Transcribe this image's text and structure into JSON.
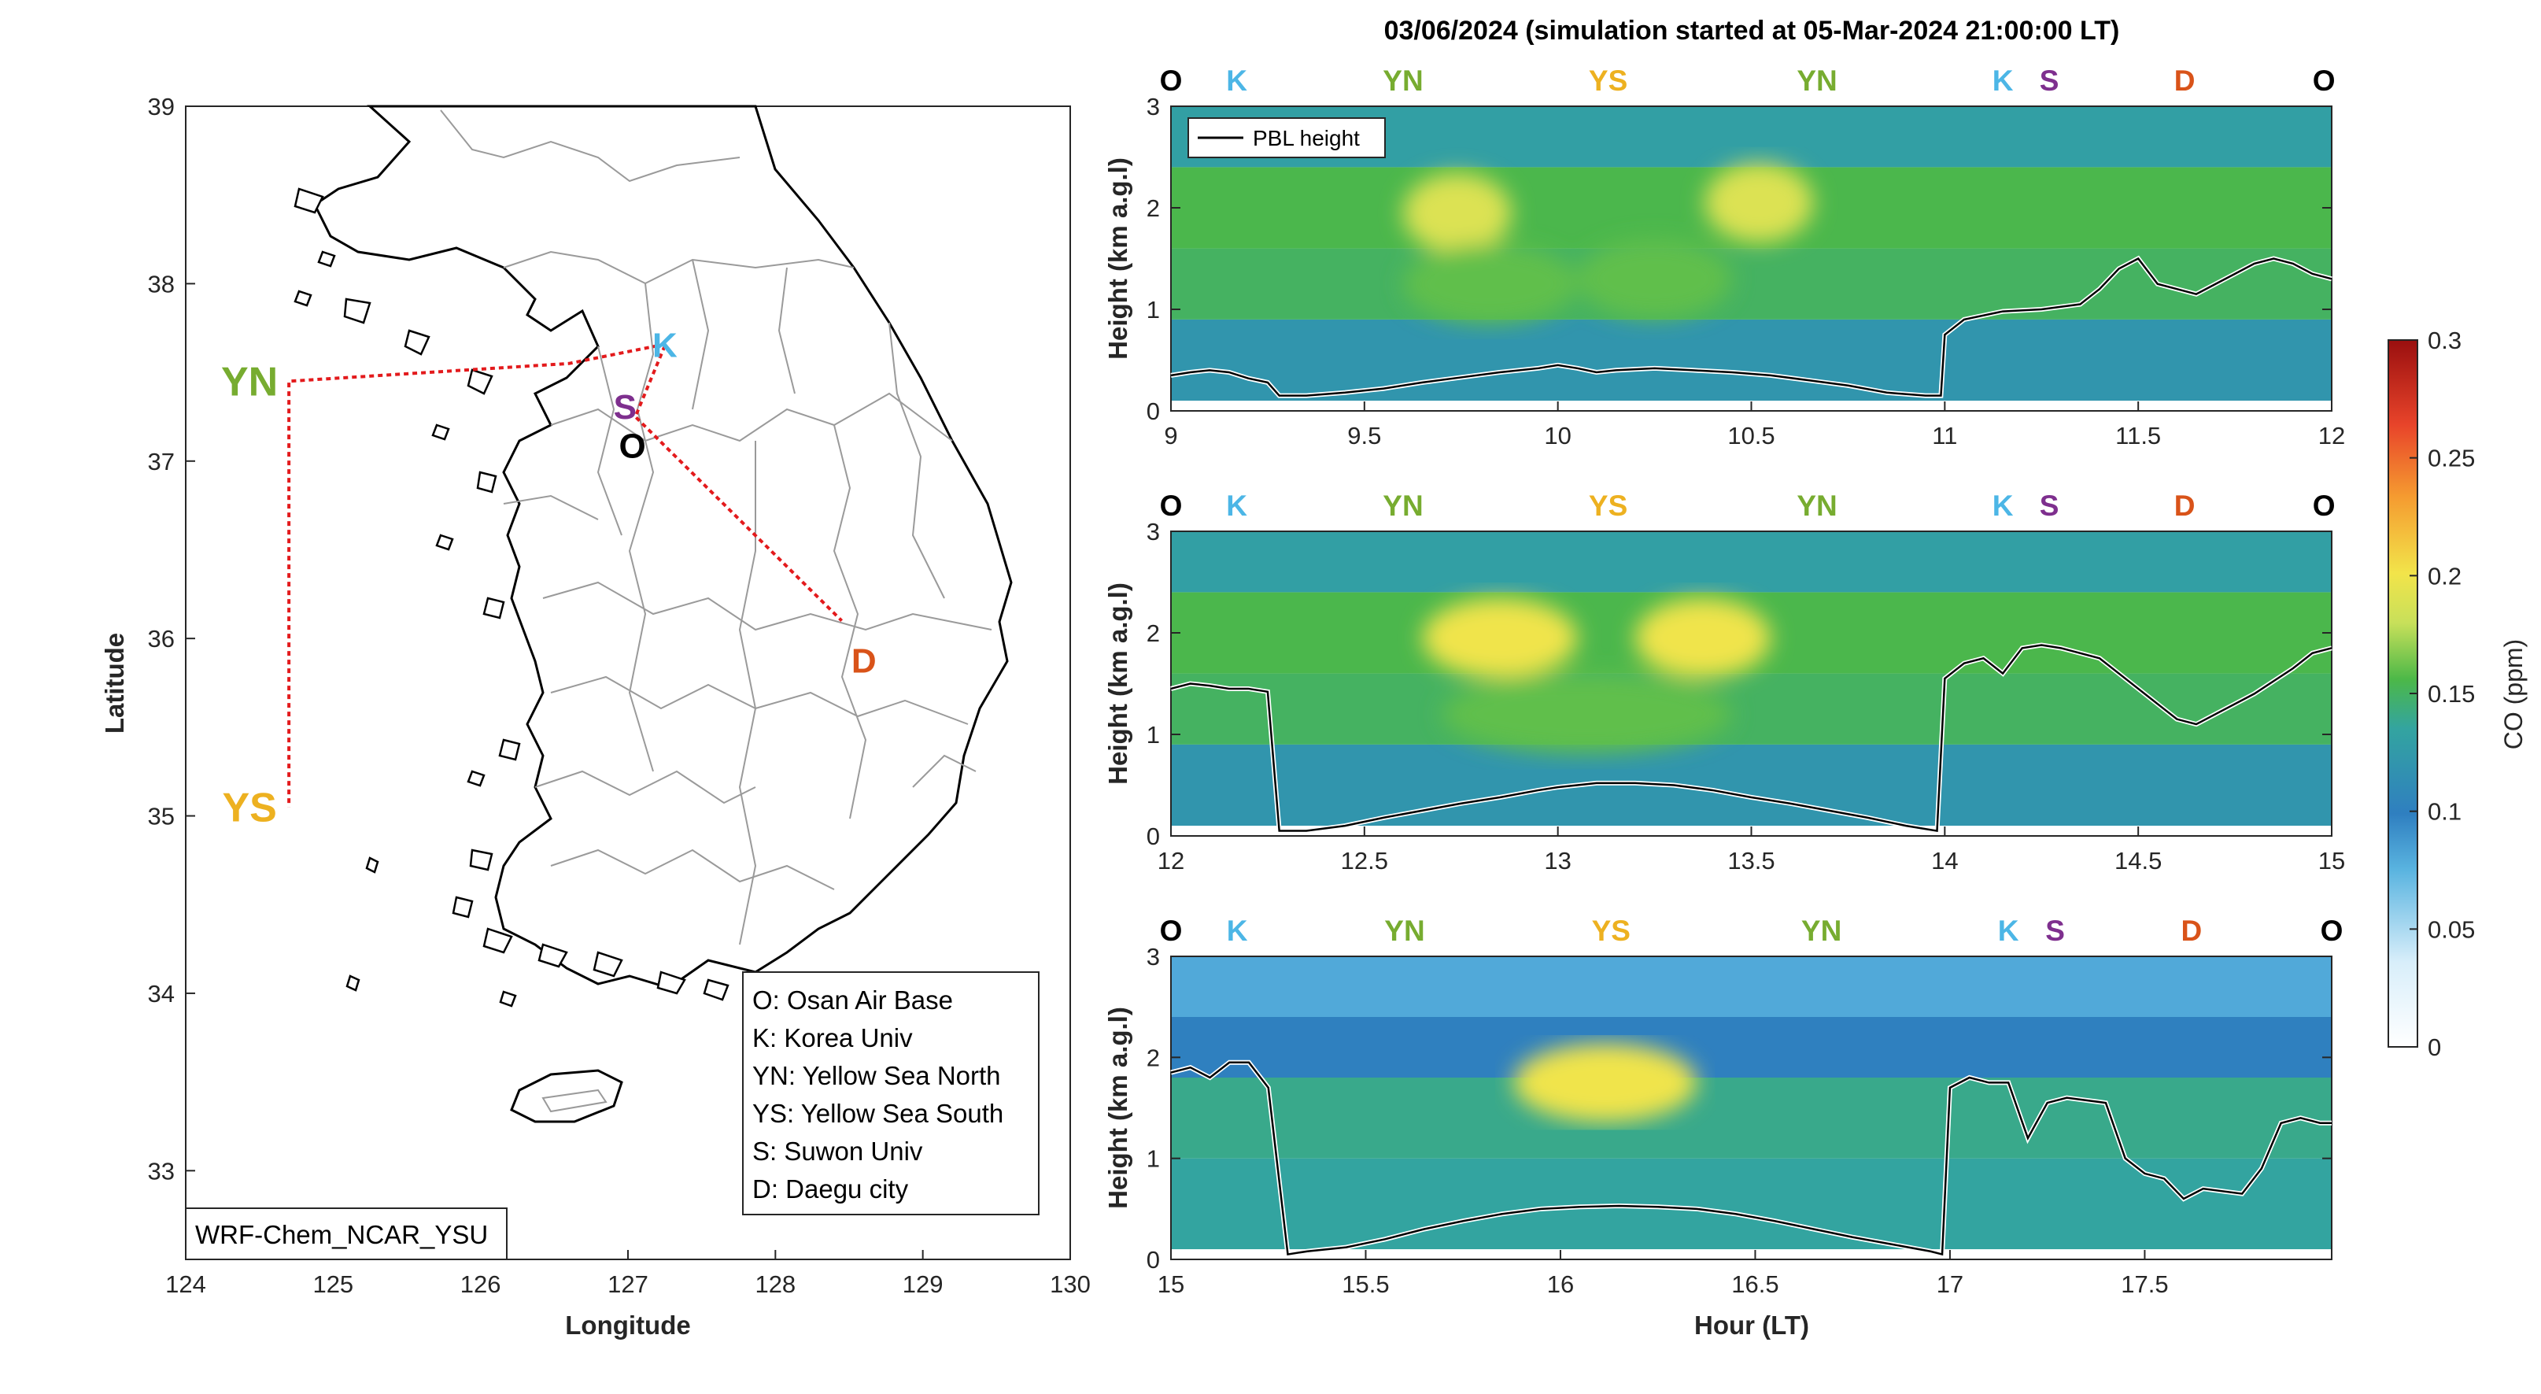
{
  "colors": {
    "O": "#000000",
    "K": "#4cb6e6",
    "YN": "#77ac30",
    "YS": "#edb120",
    "S": "#7e2f8e",
    "D": "#d95319",
    "route": "#e31a1c",
    "pbl": "#000000"
  },
  "map": {
    "xlabel": "Longitude",
    "ylabel": "Latitude",
    "xticks": [
      124,
      125,
      126,
      127,
      128,
      129,
      130
    ],
    "yticks": [
      33,
      34,
      35,
      36,
      37,
      38,
      39
    ],
    "model_label": "WRF-Chem_NCAR_YSU",
    "sites": [
      {
        "code": "K",
        "lon": 127.25,
        "lat": 37.65
      },
      {
        "code": "S",
        "lon": 126.98,
        "lat": 37.3
      },
      {
        "code": "O",
        "lon": 127.03,
        "lat": 37.08
      },
      {
        "code": "D",
        "lon": 128.6,
        "lat": 35.87
      }
    ],
    "side_labels": [
      {
        "code": "YN",
        "lon": 124.7,
        "lat": 37.45
      },
      {
        "code": "YS",
        "lon": 124.7,
        "lat": 35.05
      }
    ],
    "route": [
      [
        127.2,
        37.65
      ],
      [
        126.6,
        37.55
      ],
      [
        124.7,
        37.45
      ],
      [
        124.7,
        35.05
      ]
    ],
    "route2": [
      [
        127.25,
        37.65
      ],
      [
        127.05,
        37.25
      ],
      [
        128.45,
        36.1
      ]
    ],
    "legend": [
      "O: Osan Air Base",
      "K: Korea Univ",
      "YN: Yellow Sea North",
      "YS: Yellow Sea South",
      "S: Suwon Univ",
      "D: Daegu city"
    ]
  },
  "chart_data": {
    "type": "heatmap",
    "title": "03/06/2024 (simulation started at 05-Mar-2024 21:00:00 LT)",
    "xlabel": "Hour (LT)",
    "ylabel": "Height (km a.g.l)",
    "colorbar_label": "CO (ppm)",
    "colorbar_ticks": [
      0,
      0.05,
      0.1,
      0.15,
      0.2,
      0.25,
      0.3
    ],
    "clim": [
      0,
      0.3
    ],
    "ylim": [
      0,
      3
    ],
    "series_name": "PBL height",
    "panels": [
      {
        "xlim": [
          9,
          12
        ],
        "xticks": [
          "9",
          "9.5",
          "10",
          "10.5",
          "11",
          "11.5",
          "12"
        ],
        "yticks": [
          "0",
          "1",
          "2",
          "3"
        ],
        "sites": [
          [
            "O",
            9.0
          ],
          [
            "K",
            9.17
          ],
          [
            "YN",
            9.6
          ],
          [
            "YS",
            10.13
          ],
          [
            "YN",
            10.67
          ],
          [
            "K",
            11.15
          ],
          [
            "S",
            11.27
          ],
          [
            "D",
            11.62
          ],
          [
            "O",
            11.98
          ]
        ],
        "pbl": [
          [
            9.0,
            0.35
          ],
          [
            9.05,
            0.38
          ],
          [
            9.1,
            0.4
          ],
          [
            9.15,
            0.38
          ],
          [
            9.2,
            0.32
          ],
          [
            9.25,
            0.28
          ],
          [
            9.28,
            0.15
          ],
          [
            9.35,
            0.15
          ],
          [
            9.45,
            0.18
          ],
          [
            9.55,
            0.22
          ],
          [
            9.65,
            0.28
          ],
          [
            9.75,
            0.33
          ],
          [
            9.85,
            0.38
          ],
          [
            9.95,
            0.42
          ],
          [
            10.0,
            0.45
          ],
          [
            10.05,
            0.42
          ],
          [
            10.1,
            0.38
          ],
          [
            10.15,
            0.4
          ],
          [
            10.25,
            0.42
          ],
          [
            10.35,
            0.4
          ],
          [
            10.45,
            0.38
          ],
          [
            10.55,
            0.35
          ],
          [
            10.65,
            0.3
          ],
          [
            10.75,
            0.25
          ],
          [
            10.85,
            0.18
          ],
          [
            10.95,
            0.15
          ],
          [
            10.99,
            0.15
          ],
          [
            11.0,
            0.75
          ],
          [
            11.05,
            0.9
          ],
          [
            11.15,
            0.98
          ],
          [
            11.25,
            1.0
          ],
          [
            11.35,
            1.05
          ],
          [
            11.4,
            1.2
          ],
          [
            11.45,
            1.4
          ],
          [
            11.5,
            1.5
          ],
          [
            11.55,
            1.25
          ],
          [
            11.6,
            1.2
          ],
          [
            11.65,
            1.15
          ],
          [
            11.7,
            1.25
          ],
          [
            11.75,
            1.35
          ],
          [
            11.8,
            1.45
          ],
          [
            11.85,
            1.5
          ],
          [
            11.9,
            1.45
          ],
          [
            11.95,
            1.35
          ],
          [
            12.0,
            1.3
          ]
        ],
        "bands": [
          {
            "x": [
              9.6,
              9.88
            ],
            "y": 1.95,
            "v": 0.19
          },
          {
            "x": [
              10.38,
              10.66
            ],
            "y": 2.05,
            "v": 0.19
          },
          {
            "x": [
              9.6,
              10.05
            ],
            "y": 1.25,
            "v": 0.16
          },
          {
            "x": [
              10.05,
              10.45
            ],
            "y": 1.3,
            "v": 0.16
          }
        ]
      },
      {
        "xlim": [
          12,
          15
        ],
        "xticks": [
          "12",
          "12.5",
          "13",
          "13.5",
          "14",
          "14.5",
          "15"
        ],
        "yticks": [
          "0",
          "1",
          "2",
          "3"
        ],
        "sites": [
          [
            "O",
            12.0
          ],
          [
            "K",
            12.17
          ],
          [
            "YN",
            12.6
          ],
          [
            "YS",
            13.13
          ],
          [
            "YN",
            13.67
          ],
          [
            "K",
            14.15
          ],
          [
            "S",
            14.27
          ],
          [
            "D",
            14.62
          ],
          [
            "O",
            14.98
          ]
        ],
        "pbl": [
          [
            12.0,
            1.45
          ],
          [
            12.05,
            1.5
          ],
          [
            12.1,
            1.48
          ],
          [
            12.15,
            1.45
          ],
          [
            12.2,
            1.45
          ],
          [
            12.25,
            1.42
          ],
          [
            12.28,
            0.05
          ],
          [
            12.35,
            0.05
          ],
          [
            12.45,
            0.1
          ],
          [
            12.55,
            0.18
          ],
          [
            12.65,
            0.25
          ],
          [
            12.75,
            0.32
          ],
          [
            12.85,
            0.38
          ],
          [
            12.95,
            0.45
          ],
          [
            13.0,
            0.48
          ],
          [
            13.1,
            0.52
          ],
          [
            13.2,
            0.52
          ],
          [
            13.3,
            0.5
          ],
          [
            13.4,
            0.45
          ],
          [
            13.5,
            0.38
          ],
          [
            13.6,
            0.32
          ],
          [
            13.7,
            0.25
          ],
          [
            13.8,
            0.18
          ],
          [
            13.9,
            0.1
          ],
          [
            13.98,
            0.05
          ],
          [
            14.0,
            1.55
          ],
          [
            14.05,
            1.7
          ],
          [
            14.1,
            1.75
          ],
          [
            14.15,
            1.6
          ],
          [
            14.2,
            1.85
          ],
          [
            14.25,
            1.88
          ],
          [
            14.3,
            1.85
          ],
          [
            14.4,
            1.75
          ],
          [
            14.5,
            1.45
          ],
          [
            14.55,
            1.3
          ],
          [
            14.6,
            1.15
          ],
          [
            14.65,
            1.1
          ],
          [
            14.7,
            1.2
          ],
          [
            14.8,
            1.4
          ],
          [
            14.9,
            1.65
          ],
          [
            14.95,
            1.8
          ],
          [
            15.0,
            1.85
          ]
        ],
        "bands": [
          {
            "x": [
              12.65,
              13.05
            ],
            "y": 1.95,
            "v": 0.2
          },
          {
            "x": [
              13.2,
              13.55
            ],
            "y": 1.95,
            "v": 0.2
          },
          {
            "x": [
              12.7,
              13.45
            ],
            "y": 1.2,
            "v": 0.16
          }
        ]
      },
      {
        "xlim": [
          15,
          17.98
        ],
        "xticks": [
          "15",
          "15.5",
          "16",
          "16.5",
          "17",
          "17.5"
        ],
        "yticks": [
          "0",
          "1",
          "2",
          "3"
        ],
        "sites": [
          [
            "O",
            15.0
          ],
          [
            "K",
            15.17
          ],
          [
            "YN",
            15.6
          ],
          [
            "YS",
            16.13
          ],
          [
            "YN",
            16.67
          ],
          [
            "K",
            17.15
          ],
          [
            "S",
            17.27
          ],
          [
            "D",
            17.62
          ],
          [
            "O",
            17.98
          ]
        ],
        "pbl": [
          [
            15.0,
            1.85
          ],
          [
            15.05,
            1.9
          ],
          [
            15.1,
            1.8
          ],
          [
            15.15,
            1.95
          ],
          [
            15.2,
            1.95
          ],
          [
            15.25,
            1.7
          ],
          [
            15.3,
            0.05
          ],
          [
            15.35,
            0.08
          ],
          [
            15.45,
            0.12
          ],
          [
            15.55,
            0.2
          ],
          [
            15.65,
            0.3
          ],
          [
            15.75,
            0.38
          ],
          [
            15.85,
            0.45
          ],
          [
            15.95,
            0.5
          ],
          [
            16.05,
            0.52
          ],
          [
            16.15,
            0.53
          ],
          [
            16.25,
            0.52
          ],
          [
            16.35,
            0.5
          ],
          [
            16.45,
            0.45
          ],
          [
            16.55,
            0.38
          ],
          [
            16.65,
            0.3
          ],
          [
            16.75,
            0.22
          ],
          [
            16.85,
            0.15
          ],
          [
            16.95,
            0.08
          ],
          [
            16.98,
            0.05
          ],
          [
            17.0,
            1.7
          ],
          [
            17.05,
            1.8
          ],
          [
            17.1,
            1.75
          ],
          [
            17.15,
            1.75
          ],
          [
            17.2,
            1.2
          ],
          [
            17.25,
            1.55
          ],
          [
            17.3,
            1.6
          ],
          [
            17.4,
            1.55
          ],
          [
            17.45,
            1.0
          ],
          [
            17.5,
            0.85
          ],
          [
            17.55,
            0.8
          ],
          [
            17.6,
            0.6
          ],
          [
            17.65,
            0.7
          ],
          [
            17.75,
            0.65
          ],
          [
            17.8,
            0.9
          ],
          [
            17.85,
            1.35
          ],
          [
            17.9,
            1.4
          ],
          [
            17.95,
            1.35
          ],
          [
            17.98,
            1.35
          ]
        ],
        "bands": [
          {
            "x": [
              15.88,
              16.35
            ],
            "y": 1.75,
            "v": 0.2
          }
        ]
      }
    ]
  }
}
